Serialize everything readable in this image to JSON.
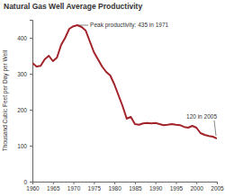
{
  "chart_data": {
    "type": "line",
    "title": "Natural Gas Well Average Productivity",
    "y_label": "Thousand Cubic Feet per Day per Well",
    "x": [
      1960,
      1961,
      1962,
      1963,
      1964,
      1965,
      1966,
      1967,
      1968,
      1969,
      1970,
      1971,
      1972,
      1973,
      1974,
      1975,
      1976,
      1977,
      1978,
      1979,
      1980,
      1981,
      1982,
      1983,
      1984,
      1985,
      1986,
      1987,
      1988,
      1989,
      1990,
      1991,
      1992,
      1993,
      1994,
      1995,
      1996,
      1997,
      1998,
      1999,
      2000,
      2001,
      2002,
      2003,
      2004,
      2005
    ],
    "values": [
      330,
      320,
      322,
      340,
      350,
      335,
      345,
      380,
      400,
      425,
      432,
      435,
      430,
      420,
      390,
      360,
      340,
      320,
      305,
      295,
      270,
      240,
      210,
      175,
      180,
      160,
      158,
      162,
      163,
      162,
      163,
      160,
      157,
      158,
      160,
      158,
      157,
      152,
      150,
      155,
      150,
      135,
      130,
      127,
      125,
      120
    ],
    "color": "#a3232a",
    "xlim": [
      1960,
      2005
    ],
    "xticks": [
      1960,
      1965,
      1970,
      1975,
      1980,
      1985,
      1990,
      1995,
      2000,
      2005
    ],
    "ylim": [
      0,
      450
    ],
    "yticks": [
      0,
      100,
      200,
      300,
      400
    ],
    "grid": false,
    "annotations": [
      {
        "text": "Peak productivity: 435 in 1971",
        "x": 1971,
        "y": 435
      },
      {
        "text": "120 in 2005",
        "x": 2005,
        "y": 120
      }
    ]
  }
}
